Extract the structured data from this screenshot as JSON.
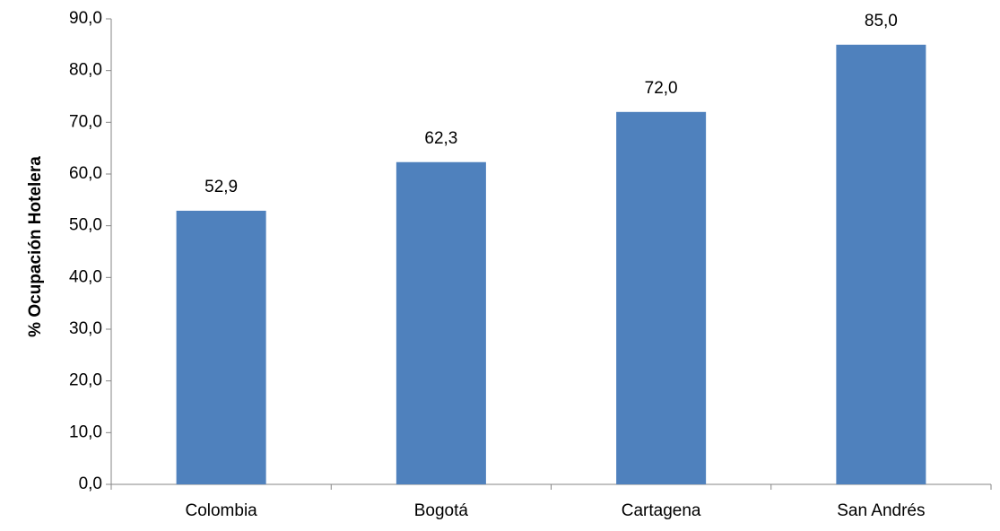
{
  "chart_data": {
    "type": "bar",
    "title": "",
    "xlabel": "",
    "ylabel": "% Ocupación Hotelera",
    "categories": [
      "Colombia",
      "Bogotá",
      "Cartagena",
      "San Andrés"
    ],
    "values": [
      52.9,
      62.3,
      72.0,
      85.0
    ],
    "value_labels": [
      "52,9",
      "62,3",
      "72,0",
      "85,0"
    ],
    "ylim": [
      0,
      90
    ],
    "yticks": [
      0,
      10,
      20,
      30,
      40,
      50,
      60,
      70,
      80,
      90
    ],
    "ytick_labels": [
      "0,0",
      "10,0",
      "20,0",
      "30,0",
      "40,0",
      "50,0",
      "60,0",
      "70,0",
      "80,0",
      "90,0"
    ],
    "bar_color": "#4F81BD",
    "grid": false,
    "legend": false
  }
}
